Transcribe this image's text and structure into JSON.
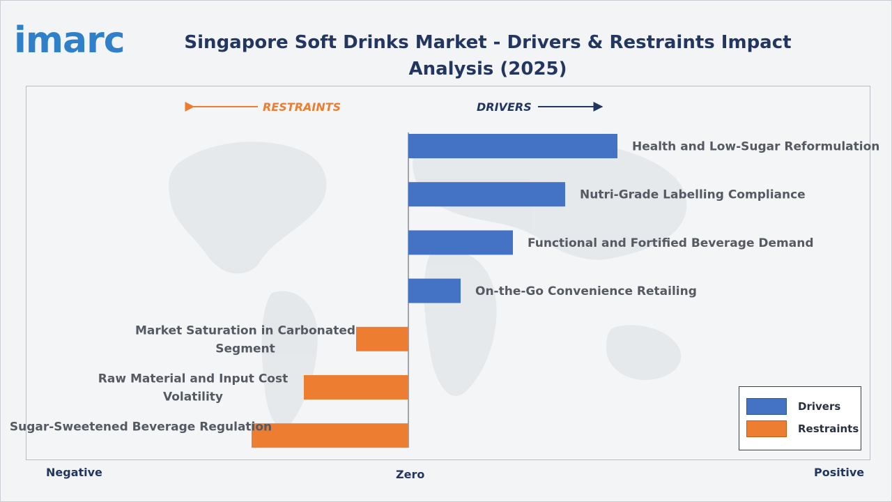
{
  "header": {
    "logo_text": "imarc",
    "title": "Singapore Soft Drinks Market - Drivers & Restraints Impact Analysis (2025)"
  },
  "direction_labels": {
    "restraints": "RESTRAINTS",
    "drivers": "DRIVERS"
  },
  "axis": {
    "negative": "Negative",
    "zero": "Zero",
    "positive": "Positive"
  },
  "legend": {
    "drivers": "Drivers",
    "restraints": "Restraints"
  },
  "colors": {
    "drivers": "#4472c4",
    "restraints": "#ed7d31",
    "title": "#23365f",
    "logo": "#2f80c9"
  },
  "chart_data": {
    "type": "bar",
    "orientation": "horizontal",
    "title": "Singapore Soft Drinks Market - Drivers & Restraints Impact Analysis (2025)",
    "categories": [
      "Health and Low-Sugar Reformulation",
      "Nutri-Grade Labelling Compliance",
      "Functional and Fortified Beverage Demand",
      "On-the-Go Convenience Retailing",
      "Market Saturation in Carbonated Segment",
      "Raw Material and Input Cost Volatility",
      "Sugar-Sweetened Beverage Regulation"
    ],
    "series": [
      {
        "name": "Drivers",
        "values": [
          4,
          3,
          2,
          1,
          0,
          0,
          0
        ]
      },
      {
        "name": "Restraints",
        "values": [
          0,
          0,
          0,
          0,
          -1,
          -2,
          -3
        ]
      }
    ],
    "xlim": [
      -4,
      4
    ],
    "legend_position": "bottom-right",
    "grid": false
  }
}
